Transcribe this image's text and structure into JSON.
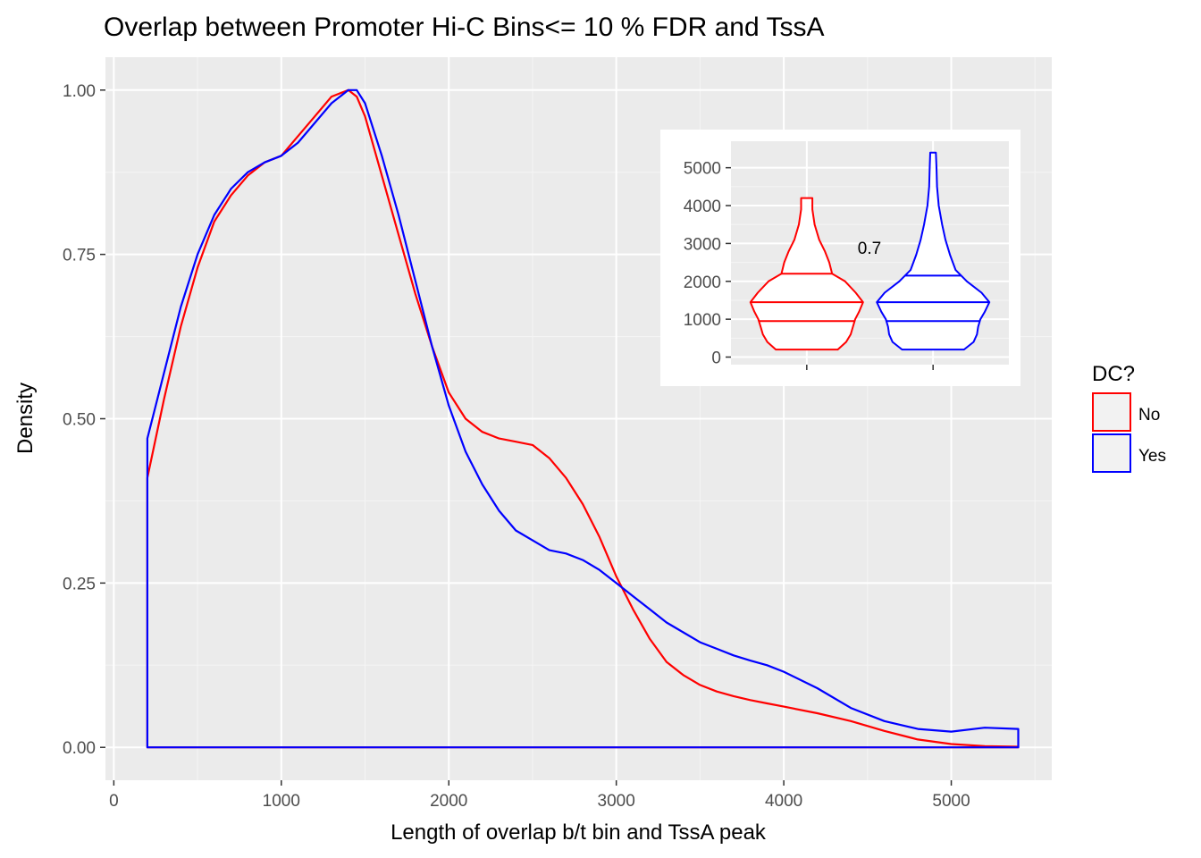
{
  "chart_data": [
    {
      "type": "line",
      "subtype": "density",
      "title": "Overlap between Promoter Hi-C Bins<= 10 % FDR and TssA",
      "xlabel": "Length of overlap b/t bin and TssA peak",
      "ylabel": "Density",
      "xlim": [
        -50,
        5600
      ],
      "ylim": [
        -0.05,
        1.05
      ],
      "x_ticks": [
        0,
        1000,
        2000,
        3000,
        4000,
        5000
      ],
      "x_tick_labels": [
        "0",
        "1000",
        "2000",
        "3000",
        "4000",
        "5000"
      ],
      "y_ticks": [
        0,
        0.25,
        0.5,
        0.75,
        1.0
      ],
      "y_tick_labels": [
        "0.00",
        "0.25",
        "0.50",
        "0.75",
        "1.00"
      ],
      "grid": true,
      "legend": {
        "title": "DC?",
        "position": "right"
      },
      "series": [
        {
          "name": "No",
          "color": "#ff0000",
          "x": [
            200,
            300,
            400,
            500,
            600,
            700,
            800,
            900,
            1000,
            1100,
            1200,
            1300,
            1400,
            1450,
            1500,
            1600,
            1700,
            1800,
            1900,
            2000,
            2100,
            2200,
            2300,
            2400,
            2500,
            2600,
            2700,
            2800,
            2900,
            3000,
            3100,
            3200,
            3300,
            3400,
            3500,
            3600,
            3700,
            3800,
            3900,
            4000,
            4200,
            4400,
            4600,
            4800,
            5000,
            5200,
            5400
          ],
          "y": [
            0.41,
            0.53,
            0.64,
            0.73,
            0.8,
            0.84,
            0.87,
            0.89,
            0.9,
            0.93,
            0.96,
            0.99,
            1.0,
            0.99,
            0.96,
            0.87,
            0.78,
            0.69,
            0.61,
            0.54,
            0.5,
            0.48,
            0.47,
            0.465,
            0.46,
            0.44,
            0.41,
            0.37,
            0.32,
            0.26,
            0.21,
            0.165,
            0.13,
            0.11,
            0.095,
            0.085,
            0.078,
            0.072,
            0.067,
            0.062,
            0.052,
            0.04,
            0.025,
            0.012,
            0.005,
            0.002,
            0.001
          ]
        },
        {
          "name": "Yes",
          "color": "#0000ff",
          "x": [
            200,
            300,
            400,
            500,
            600,
            700,
            800,
            900,
            1000,
            1100,
            1200,
            1300,
            1400,
            1450,
            1500,
            1600,
            1700,
            1800,
            1900,
            2000,
            2100,
            2200,
            2300,
            2400,
            2500,
            2600,
            2700,
            2800,
            2900,
            3000,
            3100,
            3200,
            3300,
            3400,
            3500,
            3600,
            3700,
            3800,
            3900,
            4000,
            4200,
            4400,
            4600,
            4800,
            5000,
            5200,
            5400
          ],
          "y": [
            0.47,
            0.57,
            0.67,
            0.75,
            0.81,
            0.85,
            0.875,
            0.89,
            0.9,
            0.92,
            0.95,
            0.98,
            1.0,
            1.0,
            0.98,
            0.9,
            0.81,
            0.71,
            0.61,
            0.52,
            0.45,
            0.4,
            0.36,
            0.33,
            0.315,
            0.3,
            0.295,
            0.285,
            0.27,
            0.25,
            0.23,
            0.21,
            0.19,
            0.175,
            0.16,
            0.15,
            0.14,
            0.132,
            0.125,
            0.115,
            0.09,
            0.06,
            0.04,
            0.028,
            0.024,
            0.03,
            0.028
          ]
        }
      ]
    },
    {
      "type": "violin",
      "ylim": [
        -200,
        5700
      ],
      "y_ticks": [
        0,
        1000,
        2000,
        3000,
        4000,
        5000
      ],
      "y_tick_labels": [
        "0",
        "1000",
        "2000",
        "3000",
        "4000",
        "5000"
      ],
      "x_tick_labels": [
        "",
        ""
      ],
      "grid": true,
      "annotation": "0.7",
      "series": [
        {
          "name": "No",
          "color": "#ff0000",
          "min": 200,
          "max": 4200,
          "quantiles": [
            950,
            1450,
            2200
          ],
          "profile_y": [
            200,
            400,
            600,
            800,
            1000,
            1200,
            1450,
            1700,
            2000,
            2200,
            2500,
            2800,
            3100,
            3500,
            3900,
            4200
          ],
          "profile_w": [
            0.55,
            0.7,
            0.78,
            0.82,
            0.86,
            0.93,
            1.0,
            0.87,
            0.68,
            0.45,
            0.4,
            0.32,
            0.22,
            0.14,
            0.1,
            0.1
          ]
        },
        {
          "name": "Yes",
          "color": "#0000ff",
          "min": 200,
          "max": 5400,
          "quantiles": [
            950,
            1450,
            2150
          ],
          "profile_y": [
            200,
            400,
            600,
            800,
            1000,
            1200,
            1450,
            1700,
            2000,
            2300,
            2700,
            3100,
            3500,
            4000,
            4500,
            5000,
            5400
          ],
          "profile_w": [
            0.55,
            0.72,
            0.78,
            0.8,
            0.84,
            0.92,
            1.0,
            0.86,
            0.6,
            0.4,
            0.3,
            0.22,
            0.16,
            0.1,
            0.07,
            0.06,
            0.05
          ]
        }
      ]
    }
  ]
}
